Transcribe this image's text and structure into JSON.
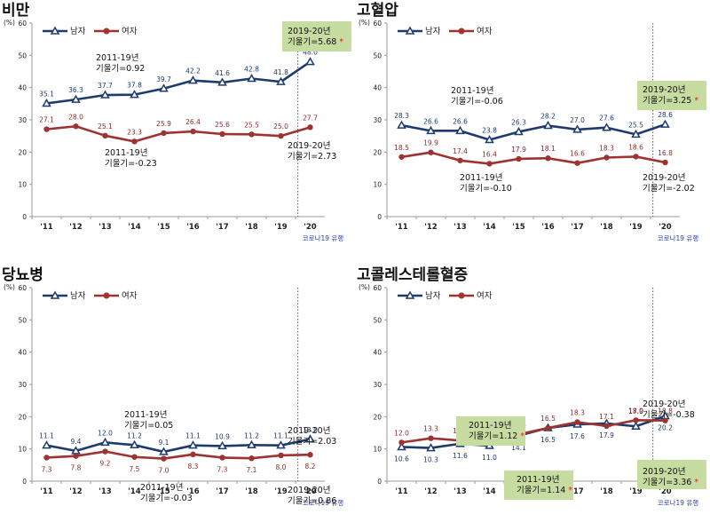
{
  "common": {
    "y_unit": "(%)",
    "legend_male": "남자",
    "legend_female": "여자",
    "covid_label": "코로나19 유행",
    "colors": {
      "male": "#1f3b6e",
      "female": "#9e3333",
      "highlight": "#c6dca0"
    }
  },
  "chart_data": [
    {
      "type": "line",
      "title": "비만",
      "categories": [
        "'11",
        "'12",
        "'13",
        "'14",
        "'15",
        "'16",
        "'17",
        "'18",
        "'19",
        "'20"
      ],
      "ylim": [
        0,
        60
      ],
      "yticks": [
        0,
        10,
        20,
        30,
        40,
        50,
        60
      ],
      "series": [
        {
          "name": "남자",
          "values": [
            35.1,
            36.3,
            37.7,
            37.8,
            39.7,
            42.2,
            41.6,
            42.8,
            41.8,
            48.0
          ]
        },
        {
          "name": "여자",
          "values": [
            27.1,
            28.0,
            25.1,
            23.3,
            25.9,
            26.4,
            25.6,
            25.5,
            25.0,
            27.7
          ]
        }
      ],
      "annotations": [
        {
          "line1": "2011-19년",
          "line2": "기울기=0.92",
          "star": false,
          "highlight": false
        },
        {
          "line1": "2019-20년",
          "line2": "기울기=5.68",
          "star": true,
          "highlight": true
        },
        {
          "line1": "2011-19년",
          "line2": "기울기=-0.23",
          "star": false,
          "highlight": false
        },
        {
          "line1": "2019-20년",
          "line2": "기울기=2.73",
          "star": false,
          "highlight": false
        }
      ]
    },
    {
      "type": "line",
      "title": "고혈압",
      "categories": [
        "'11",
        "'12",
        "'13",
        "'14",
        "'15",
        "'16",
        "'17",
        "'18",
        "'19",
        "'20"
      ],
      "ylim": [
        0,
        60
      ],
      "yticks": [
        0,
        10,
        20,
        30,
        40,
        50,
        60
      ],
      "series": [
        {
          "name": "남자",
          "values": [
            28.3,
            26.6,
            26.6,
            23.8,
            26.3,
            28.2,
            27.0,
            27.6,
            25.5,
            28.6
          ]
        },
        {
          "name": "여자",
          "values": [
            18.5,
            19.9,
            17.4,
            16.4,
            17.9,
            18.1,
            16.6,
            18.3,
            18.6,
            16.8
          ]
        }
      ],
      "annotations": [
        {
          "line1": "2011-19년",
          "line2": "기울기=-0.06",
          "star": false,
          "highlight": false
        },
        {
          "line1": "2019-20년",
          "line2": "기울기=3.25",
          "star": true,
          "highlight": true
        },
        {
          "line1": "2011-19년",
          "line2": "기울기=-0.10",
          "star": false,
          "highlight": false
        },
        {
          "line1": "2019-20년",
          "line2": "기울기=-2.02",
          "star": false,
          "highlight": false
        }
      ]
    },
    {
      "type": "line",
      "title": "당뇨병",
      "categories": [
        "'11",
        "'12",
        "'13",
        "'14",
        "'15",
        "'16",
        "'17",
        "'18",
        "'19",
        "'20"
      ],
      "ylim": [
        0,
        60
      ],
      "yticks": [
        0,
        10,
        20,
        30,
        40,
        50,
        60
      ],
      "series": [
        {
          "name": "남자",
          "values": [
            11.1,
            9.4,
            12.0,
            11.2,
            9.1,
            11.1,
            10.9,
            11.2,
            11.1,
            13.0
          ]
        },
        {
          "name": "여자",
          "values": [
            7.3,
            7.8,
            9.2,
            7.5,
            7.0,
            8.3,
            7.3,
            7.1,
            8.0,
            8.2
          ]
        }
      ],
      "annotations": [
        {
          "line1": "2011-19년",
          "line2": "기울기=0.05",
          "star": false,
          "highlight": false
        },
        {
          "line1": "2019-20년",
          "line2": "기울기=2.03",
          "star": false,
          "highlight": false
        },
        {
          "line1": "2011-19년",
          "line2": "기울기=-0.03",
          "star": false,
          "highlight": false
        },
        {
          "line1": "2019-20년",
          "line2": "기울기=0.86",
          "star": false,
          "highlight": false
        }
      ]
    },
    {
      "type": "line",
      "title": "고콜레스테롤혈증",
      "categories": [
        "'11",
        "'12",
        "'13",
        "'14",
        "'15",
        "'16",
        "'17",
        "'18",
        "'19",
        "'20"
      ],
      "ylim": [
        0,
        60
      ],
      "yticks": [
        0,
        10,
        20,
        30,
        40,
        50,
        60
      ],
      "series": [
        {
          "name": "남자",
          "values": [
            10.6,
            10.3,
            11.6,
            11.0,
            14.1,
            16.5,
            17.6,
            17.9,
            17.0,
            20.2
          ]
        },
        {
          "name": "여자",
          "values": [
            12.0,
            13.3,
            12.6,
            11.9,
            14.5,
            16.5,
            18.3,
            17.1,
            18.9,
            18.8
          ]
        }
      ],
      "annotations": [
        {
          "line1": "2011-19년",
          "line2": "기울기=1.12",
          "star": true,
          "highlight": true
        },
        {
          "line1": "2019-20년",
          "line2": "기울기=-0.38",
          "star": false,
          "highlight": false
        },
        {
          "line1": "2011-19년",
          "line2": "기울기=1.14",
          "star": true,
          "highlight": true
        },
        {
          "line1": "2019-20년",
          "line2": "기울기=3.36",
          "star": true,
          "highlight": true
        }
      ]
    }
  ]
}
